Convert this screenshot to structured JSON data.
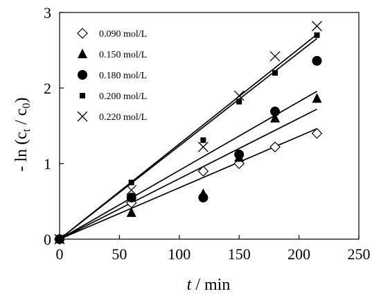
{
  "chart_data": {
    "type": "scatter",
    "title": "",
    "xlabel_italic": "t",
    "xlabel_rest": " / min",
    "ylabel_parts": {
      "prefix": "- ln (c",
      "sub1": "t",
      "mid": " / c",
      "sub2": "0",
      "suffix": ")"
    },
    "xlim": [
      0,
      250
    ],
    "ylim": [
      0,
      3
    ],
    "x_ticks": [
      0,
      50,
      100,
      150,
      200,
      250
    ],
    "y_ticks": [
      0,
      1,
      2,
      3
    ],
    "grid": false,
    "legend_position": "top-left",
    "series": [
      {
        "name": "0.090 mol/L",
        "marker": "diamond-open",
        "x": [
          0,
          60,
          120,
          150,
          180,
          215
        ],
        "y": [
          0,
          0.48,
          0.9,
          1.0,
          1.22,
          1.4
        ],
        "fit_slope": 0.0068
      },
      {
        "name": "0.150 mol/L",
        "marker": "triangle",
        "x": [
          0,
          60,
          120,
          150,
          180,
          215
        ],
        "y": [
          0,
          0.35,
          0.6,
          1.08,
          1.6,
          1.86
        ],
        "fit_slope": 0.0091
      },
      {
        "name": "0.180 mol/L",
        "marker": "circle",
        "x": [
          0,
          60,
          120,
          150,
          180,
          215
        ],
        "y": [
          0,
          0.55,
          0.55,
          1.12,
          1.69,
          2.36
        ],
        "fit_slope": 0.008
      },
      {
        "name": "0.200 mol/L",
        "marker": "square",
        "x": [
          0,
          60,
          120,
          150,
          180,
          215
        ],
        "y": [
          0,
          0.75,
          1.31,
          1.82,
          2.2,
          2.7
        ],
        "fit_slope": 0.01235
      },
      {
        "name": "0.220 mol/L",
        "marker": "cross",
        "x": [
          0,
          60,
          120,
          150,
          180,
          215
        ],
        "y": [
          0,
          0.65,
          1.22,
          1.9,
          2.42,
          2.82
        ],
        "fit_slope": 0.0126
      }
    ]
  }
}
